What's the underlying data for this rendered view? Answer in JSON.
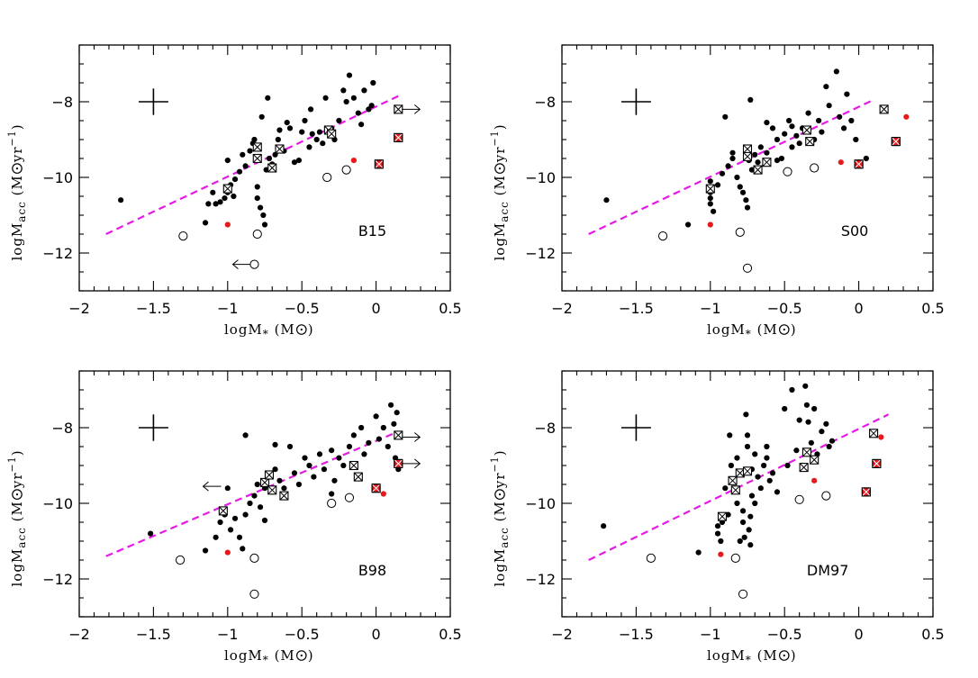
{
  "colors": {
    "fit_line": "#e619e6",
    "marker": "#000000",
    "highlight": "#e41a1c"
  },
  "axis_text": {
    "xlabel_main": "logM",
    "xlabel_sub": "*",
    "xlabel_unit": "(M",
    "xlabel_unit_close": ")",
    "ylabel_main": "logM",
    "ylabel_sub": "acc",
    "ylabel_unit": "(M",
    "ylabel_unit_mid": " yr",
    "ylabel_exp": "−1",
    "ylabel_unit_close": ")"
  },
  "chart_data": [
    {
      "type": "scatter",
      "label": "B15",
      "xlim": [
        -2,
        0.5
      ],
      "ylim": [
        -13,
        -6.5
      ],
      "xticks": [
        -2,
        -1.5,
        -1,
        -0.5,
        0,
        0.5
      ],
      "xtick_labels": [
        "−2",
        "−1.5",
        "−1",
        "−0.5",
        "0",
        "0.5"
      ],
      "yticks": [
        -12,
        -10,
        -8
      ],
      "ytick_labels": [
        "−12",
        "−10",
        "−8"
      ],
      "fit_line": [
        [
          -1.82,
          -11.5
        ],
        [
          0.15,
          -7.85
        ]
      ],
      "error_cross": {
        "x": -1.5,
        "y": -8,
        "dx": 0.1,
        "dy": 0.35
      },
      "dots": [
        [
          -1.72,
          -10.6
        ],
        [
          -1.13,
          -10.7
        ],
        [
          -1.08,
          -10.7
        ],
        [
          -1.05,
          -10.65
        ],
        [
          -1.02,
          -10.55
        ],
        [
          -1.0,
          -10.4
        ],
        [
          -0.98,
          -10.2
        ],
        [
          -0.96,
          -10.5
        ],
        [
          -0.95,
          -10.05
        ],
        [
          -1.1,
          -10.4
        ],
        [
          -1.15,
          -11.2
        ],
        [
          -1.0,
          -9.55
        ],
        [
          -0.92,
          -9.85
        ],
        [
          -0.88,
          -9.7
        ],
        [
          -0.85,
          -9.3
        ],
        [
          -0.82,
          -9.0
        ],
        [
          -0.8,
          -10.25
        ],
        [
          -0.8,
          -10.55
        ],
        [
          -0.78,
          -10.8
        ],
        [
          -0.76,
          -11.0
        ],
        [
          -0.75,
          -11.25
        ],
        [
          -0.74,
          -9.8
        ],
        [
          -0.72,
          -9.5
        ],
        [
          -0.7,
          -9.65
        ],
        [
          -0.68,
          -9.4
        ],
        [
          -0.66,
          -9.0
        ],
        [
          -0.62,
          -9.3
        ],
        [
          -0.58,
          -8.7
        ],
        [
          -0.55,
          -9.6
        ],
        [
          -0.52,
          -9.55
        ],
        [
          -0.5,
          -8.8
        ],
        [
          -0.48,
          -8.5
        ],
        [
          -0.45,
          -9.2
        ],
        [
          -0.43,
          -8.85
        ],
        [
          -0.4,
          -9.0
        ],
        [
          -0.38,
          -8.8
        ],
        [
          -0.36,
          -9.1
        ],
        [
          -0.34,
          -7.9
        ],
        [
          -0.3,
          -8.7
        ],
        [
          -0.28,
          -9.0
        ],
        [
          -0.25,
          -8.5
        ],
        [
          -0.22,
          -7.7
        ],
        [
          -0.2,
          -8.0
        ],
        [
          -0.18,
          -7.3
        ],
        [
          -0.15,
          -7.9
        ],
        [
          -0.12,
          -8.3
        ],
        [
          -0.1,
          -8.6
        ],
        [
          -0.08,
          -7.7
        ],
        [
          -0.05,
          -8.2
        ],
        [
          -0.03,
          -8.1
        ],
        [
          -0.02,
          -7.5
        ],
        [
          -0.65,
          -8.75
        ],
        [
          -0.77,
          -8.4
        ],
        [
          -0.73,
          -7.9
        ],
        [
          -0.6,
          -8.55
        ],
        [
          -0.44,
          -8.2
        ],
        [
          -0.9,
          -9.4
        ],
        [
          -0.83,
          -9.1
        ]
      ],
      "red_dots": [
        [
          -1.0,
          -11.25
        ],
        [
          -0.15,
          -9.55
        ]
      ],
      "open_circles": [
        [
          -1.3,
          -11.55
        ],
        [
          -0.8,
          -11.5
        ],
        [
          -0.33,
          -10.0
        ],
        [
          -0.2,
          -9.8
        ]
      ],
      "boxed": [
        [
          -1.0,
          -10.3
        ],
        [
          -0.8,
          -9.2
        ],
        [
          -0.8,
          -9.5
        ],
        [
          -0.7,
          -9.75
        ],
        [
          -0.65,
          -9.25
        ],
        [
          -0.32,
          -8.75
        ],
        [
          -0.3,
          -8.85
        ],
        [
          0.15,
          -8.2
        ]
      ],
      "red_boxed": [
        [
          0.15,
          -8.95
        ],
        [
          0.02,
          -9.65
        ]
      ],
      "arrows_left": [
        [
          -0.82,
          -12.3
        ]
      ],
      "arrows_right": [
        [
          0.15,
          -8.2
        ]
      ]
    },
    {
      "type": "scatter",
      "label": "S00",
      "xlim": [
        -2,
        0.5
      ],
      "ylim": [
        -13,
        -6.5
      ],
      "xticks": [
        -2,
        -1.5,
        -1,
        -0.5,
        0,
        0.5
      ],
      "xtick_labels": [
        "−2",
        "−1.5",
        "−1",
        "−0.5",
        "0",
        "0.5"
      ],
      "yticks": [
        -12,
        -10,
        -8
      ],
      "ytick_labels": [
        "−12",
        "−10",
        "−8"
      ],
      "fit_line": [
        [
          -1.82,
          -11.5
        ],
        [
          0.1,
          -7.95
        ]
      ],
      "error_cross": {
        "x": -1.5,
        "y": -8,
        "dx": 0.1,
        "dy": 0.35
      },
      "dots": [
        [
          -1.7,
          -10.6
        ],
        [
          -1.15,
          -11.25
        ],
        [
          -1.0,
          -10.1
        ],
        [
          -1.0,
          -10.4
        ],
        [
          -1.0,
          -10.55
        ],
        [
          -1.0,
          -10.7
        ],
        [
          -0.98,
          -10.9
        ],
        [
          -0.95,
          -10.2
        ],
        [
          -0.92,
          -9.9
        ],
        [
          -0.88,
          -9.7
        ],
        [
          -0.85,
          -9.5
        ],
        [
          -0.82,
          -10.0
        ],
        [
          -0.8,
          -10.25
        ],
        [
          -0.78,
          -10.4
        ],
        [
          -0.76,
          -10.6
        ],
        [
          -0.75,
          -10.8
        ],
        [
          -0.74,
          -9.55
        ],
        [
          -0.72,
          -9.8
        ],
        [
          -0.7,
          -9.4
        ],
        [
          -0.68,
          -9.6
        ],
        [
          -0.66,
          -9.2
        ],
        [
          -0.62,
          -9.35
        ],
        [
          -0.58,
          -8.7
        ],
        [
          -0.55,
          -9.0
        ],
        [
          -0.52,
          -9.5
        ],
        [
          -0.5,
          -8.85
        ],
        [
          -0.47,
          -8.5
        ],
        [
          -0.45,
          -9.2
        ],
        [
          -0.42,
          -8.9
        ],
        [
          -0.4,
          -9.1
        ],
        [
          -0.38,
          -8.7
        ],
        [
          -0.34,
          -8.3
        ],
        [
          -0.3,
          -9.0
        ],
        [
          -0.27,
          -8.5
        ],
        [
          -0.25,
          -8.8
        ],
        [
          -0.22,
          -7.6
        ],
        [
          -0.2,
          -8.1
        ],
        [
          -0.15,
          -7.2
        ],
        [
          -0.13,
          -8.4
        ],
        [
          -0.1,
          -8.7
        ],
        [
          -0.08,
          -7.8
        ],
        [
          -0.05,
          -8.5
        ],
        [
          -0.02,
          -9.0
        ],
        [
          0.05,
          -9.5
        ],
        [
          -0.9,
          -8.4
        ],
        [
          -0.73,
          -7.95
        ],
        [
          -0.62,
          -8.55
        ],
        [
          -0.55,
          -9.55
        ],
        [
          -0.85,
          -9.35
        ],
        [
          -0.45,
          -8.65
        ]
      ],
      "red_dots": [
        [
          -1.0,
          -11.25
        ],
        [
          -0.12,
          -9.6
        ],
        [
          0.32,
          -8.4
        ]
      ],
      "open_circles": [
        [
          -1.32,
          -11.55
        ],
        [
          -0.8,
          -11.45
        ],
        [
          -0.75,
          -12.4
        ],
        [
          -0.48,
          -9.85
        ],
        [
          -0.3,
          -9.75
        ]
      ],
      "boxed": [
        [
          -1.0,
          -10.3
        ],
        [
          -0.75,
          -9.25
        ],
        [
          -0.75,
          -9.45
        ],
        [
          -0.68,
          -9.8
        ],
        [
          -0.62,
          -9.6
        ],
        [
          -0.35,
          -8.75
        ],
        [
          -0.33,
          -9.05
        ],
        [
          0.17,
          -8.2
        ]
      ],
      "red_boxed": [
        [
          0.0,
          -9.65
        ],
        [
          0.25,
          -9.05
        ]
      ],
      "arrows_left": [],
      "arrows_right": []
    },
    {
      "type": "scatter",
      "label": "B98",
      "xlim": [
        -2,
        0.5
      ],
      "ylim": [
        -13,
        -6.5
      ],
      "xticks": [
        -2,
        -1.5,
        -1,
        -0.5,
        0,
        0.5
      ],
      "xtick_labels": [
        "−2",
        "−1.5",
        "−1",
        "−0.5",
        "0",
        "0.5"
      ],
      "yticks": [
        -12,
        -10,
        -8
      ],
      "ytick_labels": [
        "−12",
        "−10",
        "−8"
      ],
      "fit_line": [
        [
          -1.82,
          -11.4
        ],
        [
          0.15,
          -8.1
        ]
      ],
      "error_cross": {
        "x": -1.5,
        "y": -8,
        "dx": 0.1,
        "dy": 0.35
      },
      "dots": [
        [
          -1.52,
          -10.8
        ],
        [
          -1.15,
          -11.25
        ],
        [
          -1.08,
          -10.9
        ],
        [
          -1.05,
          -10.5
        ],
        [
          -1.02,
          -10.3
        ],
        [
          -0.98,
          -10.7
        ],
        [
          -0.95,
          -10.4
        ],
        [
          -0.92,
          -10.9
        ],
        [
          -0.9,
          -11.2
        ],
        [
          -0.88,
          -10.3
        ],
        [
          -0.85,
          -10.0
        ],
        [
          -0.82,
          -9.8
        ],
        [
          -0.8,
          -9.5
        ],
        [
          -0.78,
          -10.1
        ],
        [
          -0.75,
          -9.6
        ],
        [
          -0.72,
          -9.3
        ],
        [
          -0.7,
          -9.7
        ],
        [
          -0.68,
          -9.1
        ],
        [
          -0.65,
          -9.4
        ],
        [
          -0.62,
          -9.6
        ],
        [
          -0.58,
          -8.5
        ],
        [
          -0.55,
          -9.2
        ],
        [
          -0.52,
          -9.5
        ],
        [
          -0.48,
          -8.8
        ],
        [
          -0.45,
          -9.0
        ],
        [
          -0.42,
          -9.3
        ],
        [
          -0.38,
          -8.7
        ],
        [
          -0.35,
          -9.1
        ],
        [
          -0.3,
          -8.6
        ],
        [
          -0.28,
          -9.4
        ],
        [
          -0.25,
          -8.8
        ],
        [
          -0.22,
          -9.0
        ],
        [
          -0.18,
          -8.5
        ],
        [
          -0.15,
          -8.2
        ],
        [
          -0.1,
          -8.0
        ],
        [
          -0.08,
          -8.7
        ],
        [
          -0.05,
          -8.4
        ],
        [
          0.0,
          -7.7
        ],
        [
          0.02,
          -8.3
        ],
        [
          0.05,
          -8.0
        ],
        [
          0.08,
          -8.5
        ],
        [
          0.1,
          -7.4
        ],
        [
          0.12,
          -7.9
        ],
        [
          0.14,
          -7.6
        ],
        [
          0.13,
          -8.8
        ],
        [
          0.15,
          -9.1
        ],
        [
          -0.88,
          -8.2
        ],
        [
          -0.68,
          -8.45
        ],
        [
          -0.3,
          -9.75
        ],
        [
          -0.75,
          -10.45
        ],
        [
          -1.0,
          -9.6
        ]
      ],
      "red_dots": [
        [
          -1.0,
          -11.3
        ],
        [
          0.05,
          -9.75
        ]
      ],
      "open_circles": [
        [
          -1.32,
          -11.5
        ],
        [
          -0.82,
          -11.45
        ],
        [
          -0.82,
          -12.4
        ],
        [
          -0.3,
          -10.0
        ],
        [
          -0.18,
          -9.85
        ]
      ],
      "boxed": [
        [
          -1.03,
          -10.2
        ],
        [
          -0.75,
          -9.45
        ],
        [
          -0.72,
          -9.25
        ],
        [
          -0.7,
          -9.65
        ],
        [
          -0.62,
          -9.8
        ],
        [
          -0.15,
          -9.0
        ],
        [
          -0.12,
          -9.3
        ],
        [
          0.15,
          -8.2
        ]
      ],
      "red_boxed": [
        [
          0.0,
          -9.6
        ],
        [
          0.15,
          -8.95
        ]
      ],
      "arrows_left": [
        [
          -1.02,
          -9.55
        ]
      ],
      "arrows_right": [
        [
          0.15,
          -8.25
        ],
        [
          0.15,
          -8.95
        ]
      ]
    },
    {
      "type": "scatter",
      "label": "DM97",
      "xlim": [
        -2,
        0.5
      ],
      "ylim": [
        -13,
        -6.5
      ],
      "xticks": [
        -2,
        -1.5,
        -1,
        -0.5,
        0,
        0.5
      ],
      "xtick_labels": [
        "−2",
        "−1.5",
        "−1",
        "−0.5",
        "0",
        "0.5"
      ],
      "yticks": [
        -12,
        -10,
        -8
      ],
      "ytick_labels": [
        "−12",
        "−10",
        "−8"
      ],
      "fit_line": [
        [
          -1.82,
          -11.5
        ],
        [
          0.2,
          -7.65
        ]
      ],
      "error_cross": {
        "x": -1.5,
        "y": -8,
        "dx": 0.1,
        "dy": 0.35
      },
      "dots": [
        [
          -1.72,
          -10.6
        ],
        [
          -1.08,
          -11.3
        ],
        [
          -0.95,
          -10.6
        ],
        [
          -0.95,
          -10.8
        ],
        [
          -0.93,
          -11.0
        ],
        [
          -0.92,
          -10.5
        ],
        [
          -0.9,
          -9.6
        ],
        [
          -0.88,
          -10.3
        ],
        [
          -0.86,
          -9.0
        ],
        [
          -0.84,
          -9.4
        ],
        [
          -0.82,
          -10.0
        ],
        [
          -0.82,
          -8.8
        ],
        [
          -0.8,
          -9.2
        ],
        [
          -0.8,
          -11.0
        ],
        [
          -0.78,
          -10.2
        ],
        [
          -0.78,
          -10.5
        ],
        [
          -0.77,
          -10.9
        ],
        [
          -0.76,
          -7.65
        ],
        [
          -0.75,
          -8.2
        ],
        [
          -0.75,
          -8.5
        ],
        [
          -0.74,
          -10.7
        ],
        [
          -0.73,
          -11.1
        ],
        [
          -0.72,
          -9.1
        ],
        [
          -0.72,
          -9.8
        ],
        [
          -0.7,
          -8.7
        ],
        [
          -0.7,
          -10.0
        ],
        [
          -0.68,
          -9.3
        ],
        [
          -0.66,
          -9.6
        ],
        [
          -0.64,
          -9.0
        ],
        [
          -0.62,
          -8.8
        ],
        [
          -0.6,
          -9.4
        ],
        [
          -0.58,
          -9.2
        ],
        [
          -0.55,
          -9.7
        ],
        [
          -0.5,
          -7.5
        ],
        [
          -0.48,
          -9.0
        ],
        [
          -0.45,
          -7.0
        ],
        [
          -0.42,
          -8.6
        ],
        [
          -0.4,
          -7.8
        ],
        [
          -0.38,
          -9.0
        ],
        [
          -0.36,
          -6.9
        ],
        [
          -0.35,
          -7.4
        ],
        [
          -0.34,
          -7.85
        ],
        [
          -0.32,
          -8.4
        ],
        [
          -0.3,
          -7.5
        ],
        [
          -0.28,
          -8.7
        ],
        [
          -0.25,
          -8.1
        ],
        [
          -0.22,
          -7.9
        ],
        [
          -0.2,
          -8.5
        ],
        [
          -0.18,
          -8.35
        ],
        [
          -0.62,
          -8.5
        ],
        [
          -0.73,
          -10.35
        ],
        [
          -0.87,
          -8.2
        ]
      ],
      "red_dots": [
        [
          -0.93,
          -11.35
        ],
        [
          -0.3,
          -9.4
        ],
        [
          0.15,
          -8.25
        ]
      ],
      "open_circles": [
        [
          -1.4,
          -11.45
        ],
        [
          -0.83,
          -11.45
        ],
        [
          -0.78,
          -12.4
        ],
        [
          -0.4,
          -9.9
        ],
        [
          -0.22,
          -9.8
        ]
      ],
      "boxed": [
        [
          -0.92,
          -10.35
        ],
        [
          -0.85,
          -9.4
        ],
        [
          -0.8,
          -9.2
        ],
        [
          -0.83,
          -9.65
        ],
        [
          -0.75,
          -9.15
        ],
        [
          -0.37,
          -9.05
        ],
        [
          -0.35,
          -8.65
        ],
        [
          -0.3,
          -8.85
        ],
        [
          0.1,
          -8.15
        ]
      ],
      "red_boxed": [
        [
          0.12,
          -8.95
        ],
        [
          0.05,
          -9.7
        ]
      ],
      "arrows_left": [],
      "arrows_right": []
    }
  ]
}
